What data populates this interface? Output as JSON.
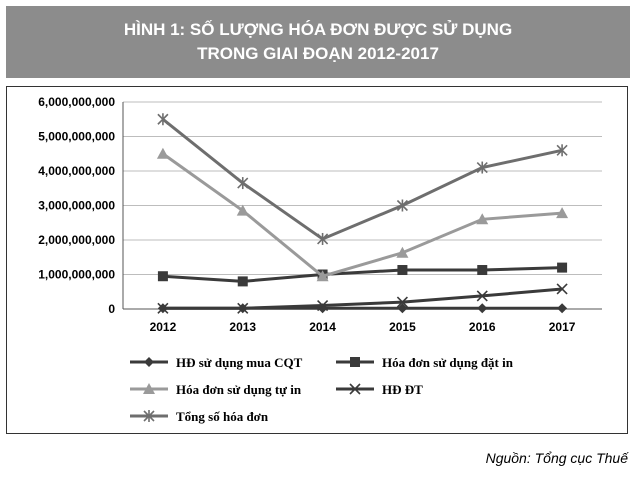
{
  "figure": {
    "title_line1": "HÌNH 1: SỐ LƯỢNG HÓA ĐƠN ĐƯỢC SỬ DỤNG",
    "title_line2": "TRONG GIAI ĐOẠN 2012-2017",
    "source": "Nguồn: Tổng cục Thuế"
  },
  "chart_data": {
    "type": "line",
    "title": "",
    "xlabel": "",
    "ylabel": "",
    "x": [
      "2012",
      "2013",
      "2014",
      "2015",
      "2016",
      "2017"
    ],
    "ylim": [
      0,
      6000000000
    ],
    "yticks": [
      0,
      1000000000,
      2000000000,
      3000000000,
      4000000000,
      5000000000,
      6000000000
    ],
    "ytick_labels": [
      "0",
      "1,000,000,000",
      "2,000,000,000",
      "3,000,000,000",
      "4,000,000,000",
      "5,000,000,000",
      "6,000,000,000"
    ],
    "grid": "horizontal",
    "legend_position": "bottom",
    "series": [
      {
        "name": "HĐ sử dụng mua CQT",
        "marker": "diamond",
        "color": "#3a3a3a",
        "values": [
          20000000,
          20000000,
          20000000,
          20000000,
          20000000,
          20000000
        ]
      },
      {
        "name": "Hóa đơn sử dụng đặt in",
        "marker": "square",
        "color": "#3a3a3a",
        "values": [
          950000000,
          800000000,
          1000000000,
          1130000000,
          1130000000,
          1200000000
        ]
      },
      {
        "name": "Hóa đơn sử dụng tự in",
        "marker": "triangle",
        "color": "#9a9a9a",
        "values": [
          4500000000,
          2850000000,
          950000000,
          1630000000,
          2600000000,
          2780000000
        ]
      },
      {
        "name": "HĐ ĐT",
        "marker": "x",
        "color": "#3a3a3a",
        "values": [
          20000000,
          20000000,
          100000000,
          200000000,
          380000000,
          580000000
        ]
      },
      {
        "name": "Tổng số hóa đơn",
        "marker": "star",
        "color": "#6e6e6e",
        "values": [
          5500000000,
          3650000000,
          2030000000,
          3000000000,
          4100000000,
          4600000000
        ]
      }
    ]
  }
}
